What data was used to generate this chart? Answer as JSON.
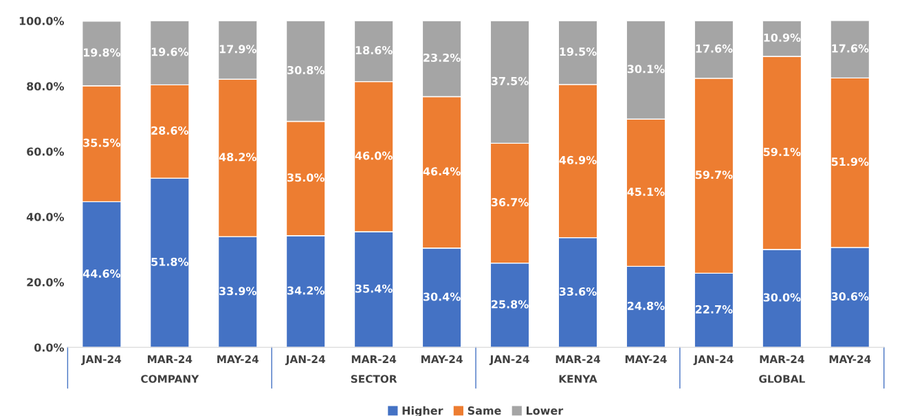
{
  "chart_data": {
    "type": "bar",
    "stacked": true,
    "categories": [
      "JAN-24",
      "MAR-24",
      "MAY-24",
      "JAN-24",
      "MAR-24",
      "MAY-24",
      "JAN-24",
      "MAR-24",
      "MAY-24",
      "JAN-24",
      "MAR-24",
      "MAY-24"
    ],
    "series": [
      {
        "name": "Higher",
        "color": "#4472c4",
        "values": [
          44.6,
          51.8,
          33.9,
          34.2,
          35.4,
          30.4,
          25.8,
          33.6,
          24.8,
          22.7,
          30.0,
          30.6
        ],
        "value_labels": [
          "44.6%",
          "51.8%",
          "33.9%",
          "34.2%",
          "35.4%",
          "30.4%",
          "25.8%",
          "33.6%",
          "24.8%",
          "22.7%",
          "30.0%",
          "30.6%"
        ]
      },
      {
        "name": "Same",
        "color": "#ed7d31",
        "values": [
          35.5,
          28.6,
          48.2,
          35.0,
          46.0,
          46.4,
          36.7,
          46.9,
          45.1,
          59.7,
          59.1,
          51.9
        ],
        "value_labels": [
          "35.5%",
          "28.6%",
          "48.2%",
          "35.0%",
          "46.0%",
          "46.4%",
          "36.7%",
          "46.9%",
          "45.1%",
          "59.7%",
          "59.1%",
          "51.9%"
        ]
      },
      {
        "name": "Lower",
        "color": "#a5a5a5",
        "values": [
          19.8,
          19.6,
          17.9,
          30.8,
          18.6,
          23.2,
          37.5,
          19.5,
          30.1,
          17.6,
          10.9,
          17.6
        ],
        "value_labels": [
          "19.8%",
          "19.6%",
          "17.9%",
          "30.8%",
          "18.6%",
          "23.2%",
          "37.5%",
          "19.5%",
          "30.1%",
          "17.6%",
          "10.9%",
          "17.6%"
        ]
      }
    ],
    "ylim": [
      0,
      100
    ],
    "yticks": [
      {
        "value": 0,
        "label": "0.0%"
      },
      {
        "value": 20,
        "label": "20.0%"
      },
      {
        "value": 40,
        "label": "40.0%"
      },
      {
        "value": 60,
        "label": "60.0%"
      },
      {
        "value": 80,
        "label": "80.0%"
      },
      {
        "value": 100,
        "label": "100.0%"
      }
    ],
    "legend": "bottom",
    "grid": false,
    "annotations": [
      "COMPANY",
      "SECTOR",
      "KENYA",
      "GLOBAL"
    ]
  }
}
